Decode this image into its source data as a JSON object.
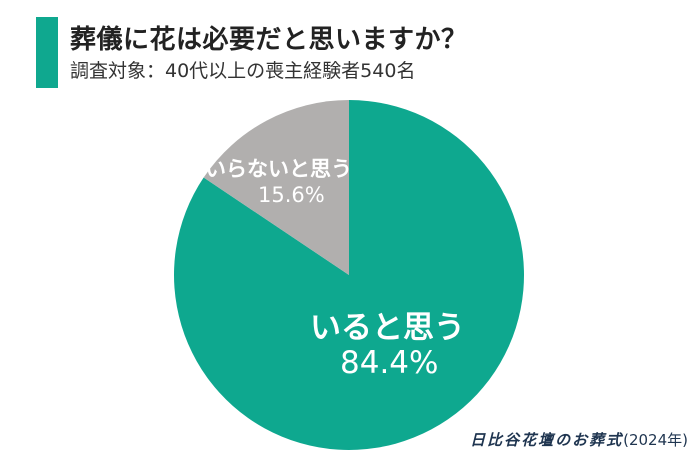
{
  "header": {
    "title": "葬儀に花は必要だと思いますか？",
    "subtitle": "調査対象：40代以上の喪主経験者540名"
  },
  "colors": {
    "accent": "#0fa88f",
    "green": "#0ea88f",
    "gray": "#b1afae",
    "text": "#222222",
    "source_text": "#1f3550"
  },
  "chart_data": {
    "type": "pie",
    "title": "葬儀に花は必要だと思いますか？",
    "subtitle": "調査対象：40代以上の喪主経験者540名",
    "categories": [
      "いると思う",
      "いらないと思う"
    ],
    "values": [
      84.4,
      15.6
    ],
    "unit": "%",
    "colors": [
      "#0ea88f",
      "#b1afae"
    ],
    "start_angle": "12 o'clock",
    "legend": "none (labels inside slices)",
    "source": "日比谷花壇のお葬式（2024年）"
  },
  "labels": {
    "yes_name": "いると思う",
    "yes_value": "84.4%",
    "no_name": "いらないと思う",
    "no_value": "15.6%"
  },
  "source": {
    "brand": "日比谷花壇のお葬式",
    "year": "(2024年)"
  }
}
